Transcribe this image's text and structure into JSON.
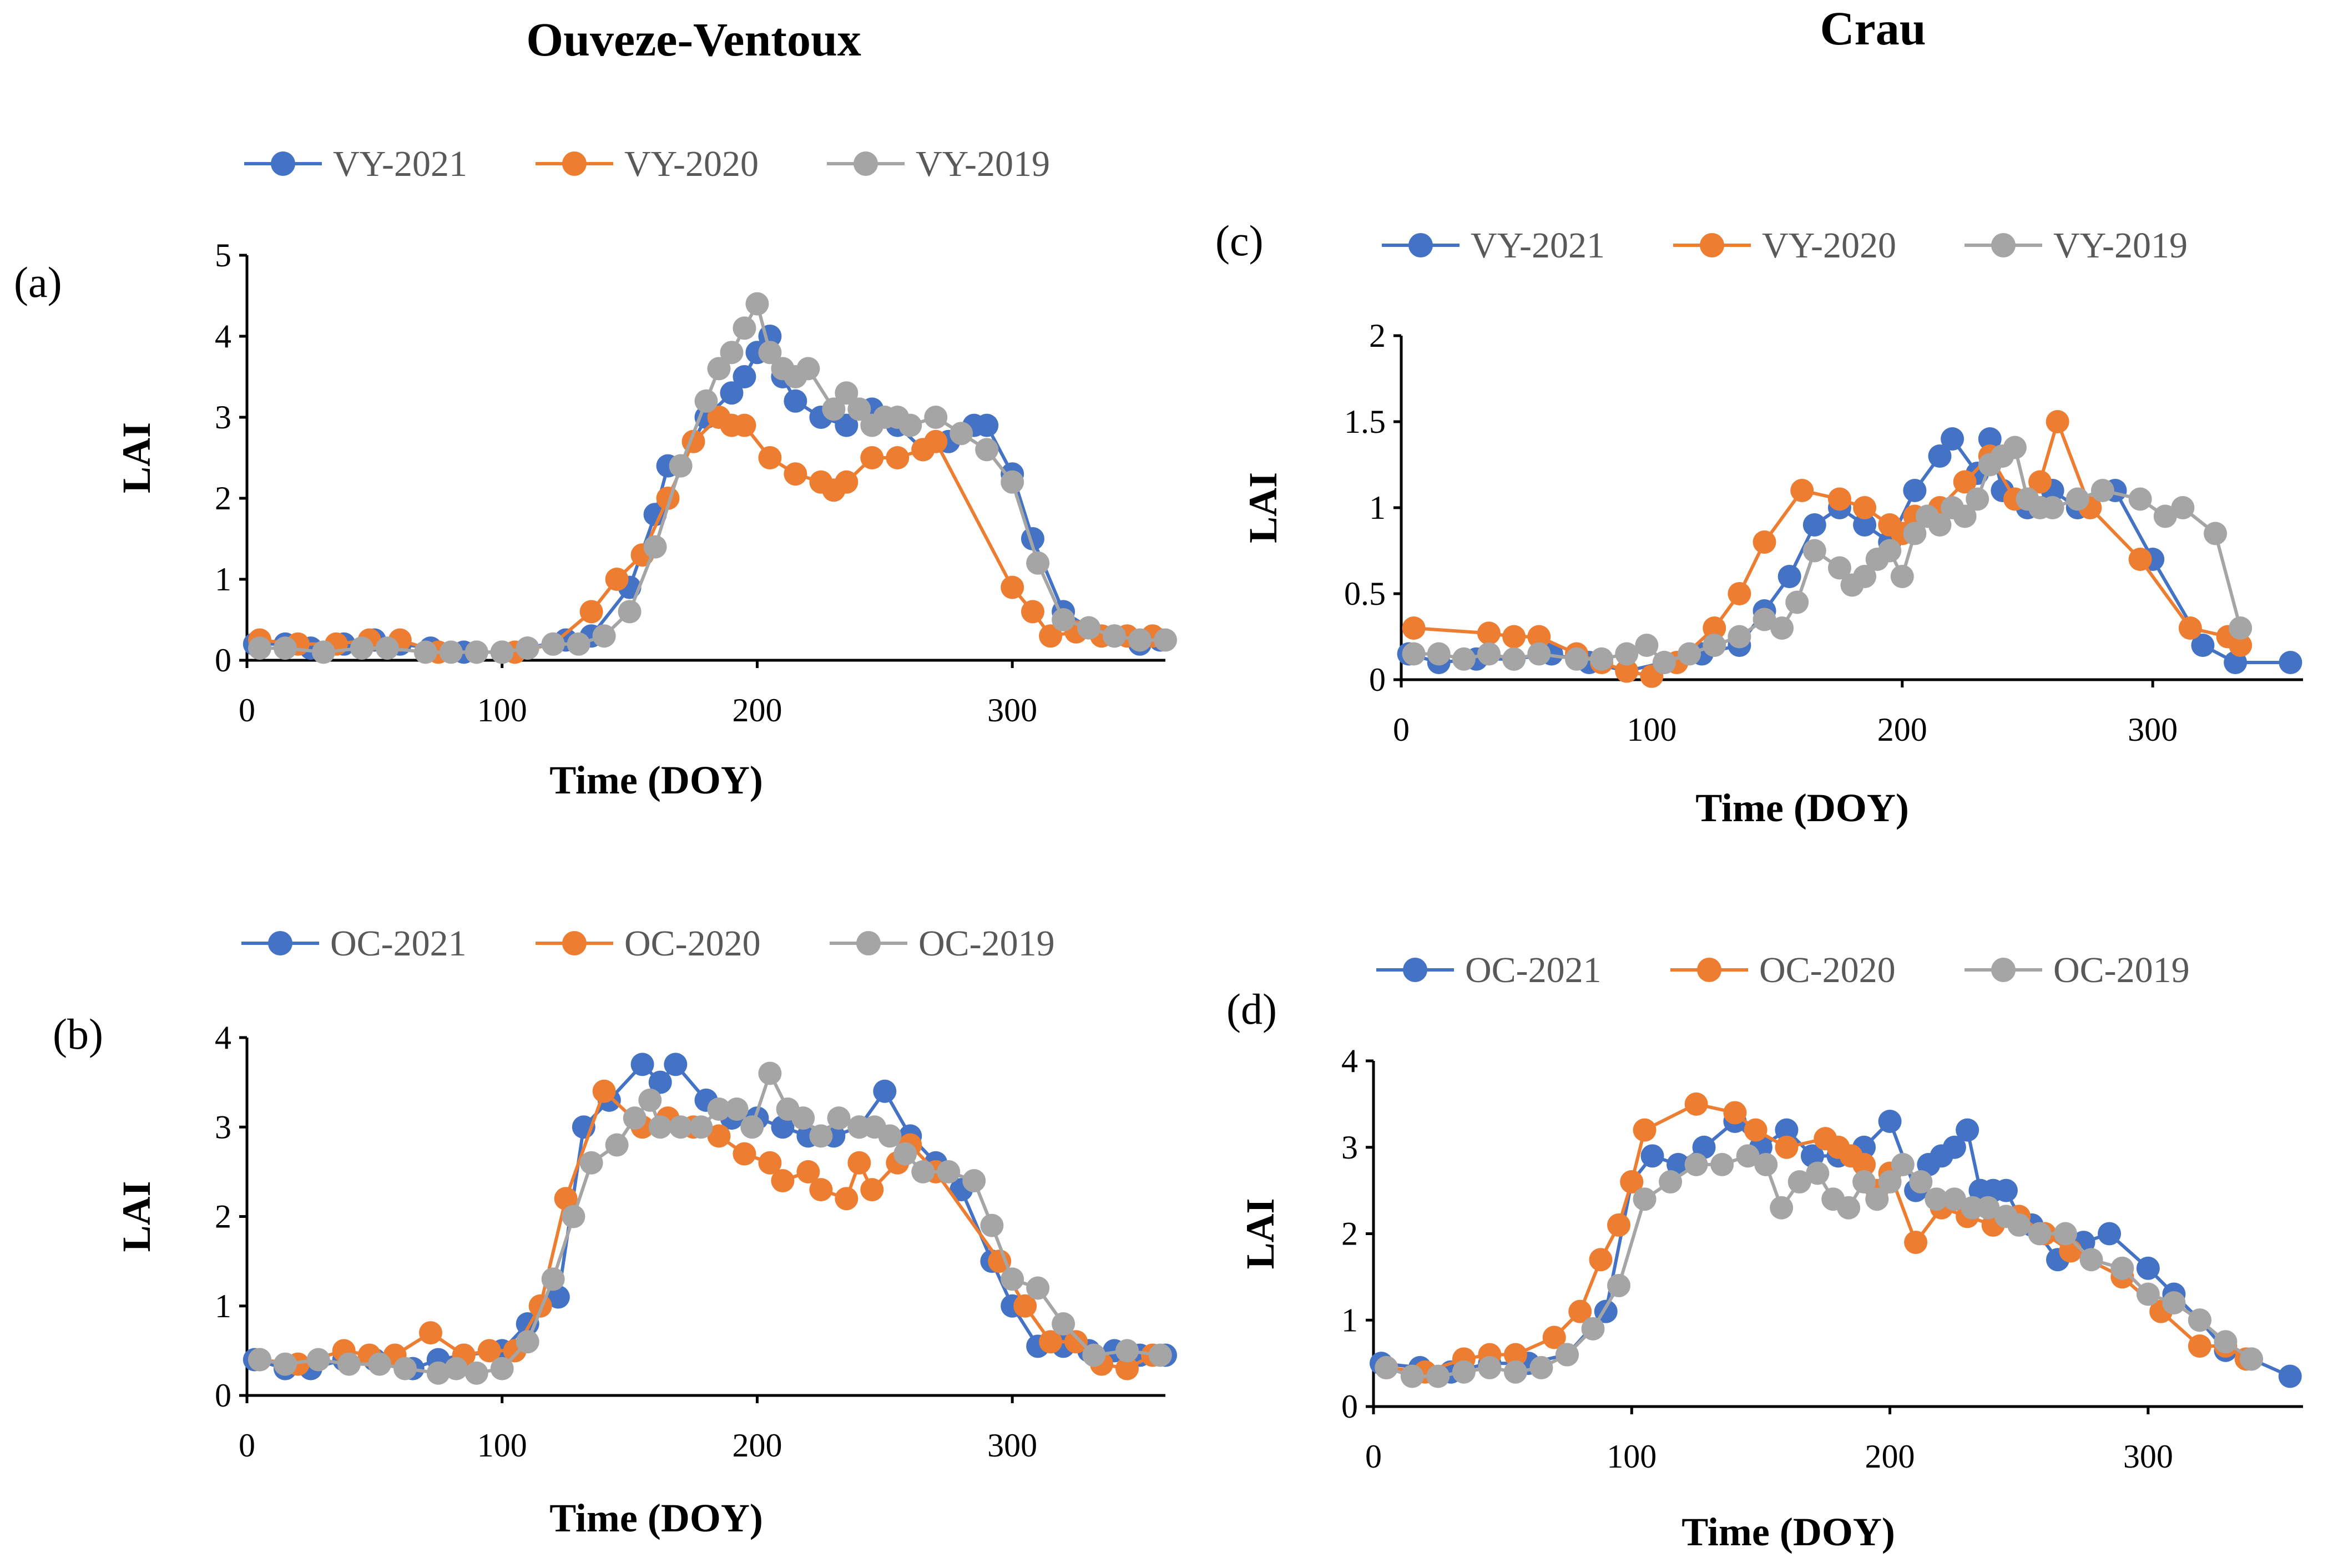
{
  "site_titles": {
    "left": "Ouveze-Ventoux",
    "right": "Crau"
  },
  "chart_data": [
    {
      "panel": "(a)",
      "site": "Ouveze-Ventoux",
      "type": "line",
      "xlabel": "Time (DOY)",
      "ylabel": "LAI",
      "xlim": [
        0,
        360
      ],
      "ylim": [
        0,
        5
      ],
      "xticks": [
        0,
        100,
        200,
        300
      ],
      "yticks": [
        0,
        1,
        2,
        3,
        4,
        5
      ],
      "legend_position": "top",
      "series": [
        {
          "name": "VY-2021",
          "color": "#4472C4",
          "x": [
            3,
            15,
            25,
            38,
            50,
            60,
            72,
            85,
            100,
            110,
            125,
            135,
            150,
            160,
            165,
            170,
            180,
            190,
            195,
            200,
            205,
            210,
            215,
            225,
            235,
            245,
            255,
            265,
            275,
            285,
            290,
            300,
            308,
            320,
            330,
            340,
            350,
            358
          ],
          "y": [
            0.2,
            0.2,
            0.15,
            0.2,
            0.25,
            0.2,
            0.15,
            0.1,
            0.1,
            0.15,
            0.25,
            0.3,
            0.9,
            1.8,
            2.4,
            2.4,
            3.0,
            3.3,
            3.5,
            3.8,
            4.0,
            3.5,
            3.2,
            3.0,
            2.9,
            3.1,
            2.9,
            2.6,
            2.7,
            2.9,
            2.9,
            2.3,
            1.5,
            0.6,
            0.4,
            0.3,
            0.2,
            0.25
          ]
        },
        {
          "name": "VY-2020",
          "color": "#ED7D31",
          "x": [
            5,
            20,
            35,
            48,
            60,
            75,
            90,
            105,
            120,
            135,
            145,
            155,
            165,
            175,
            185,
            190,
            195,
            205,
            215,
            225,
            230,
            235,
            245,
            255,
            265,
            270,
            300,
            308,
            315,
            325,
            335,
            345,
            355
          ],
          "y": [
            0.25,
            0.2,
            0.2,
            0.25,
            0.25,
            0.1,
            0.1,
            0.1,
            0.2,
            0.6,
            1.0,
            1.3,
            2.0,
            2.7,
            3.0,
            2.9,
            2.9,
            2.5,
            2.3,
            2.2,
            2.1,
            2.2,
            2.5,
            2.5,
            2.6,
            2.7,
            0.9,
            0.6,
            0.3,
            0.35,
            0.3,
            0.3,
            0.3
          ]
        },
        {
          "name": "VY-2019",
          "color": "#A5A5A5",
          "x": [
            5,
            15,
            30,
            45,
            55,
            70,
            80,
            90,
            100,
            110,
            120,
            130,
            140,
            150,
            160,
            170,
            180,
            185,
            190,
            195,
            200,
            205,
            210,
            215,
            220,
            230,
            235,
            240,
            245,
            250,
            255,
            260,
            270,
            280,
            290,
            300,
            310,
            320,
            330,
            340,
            350,
            360
          ],
          "y": [
            0.15,
            0.15,
            0.1,
            0.15,
            0.15,
            0.1,
            0.1,
            0.1,
            0.1,
            0.15,
            0.2,
            0.2,
            0.3,
            0.6,
            1.4,
            2.4,
            3.2,
            3.6,
            3.8,
            4.1,
            4.4,
            3.8,
            3.6,
            3.5,
            3.6,
            3.1,
            3.3,
            3.1,
            2.9,
            3.0,
            3.0,
            2.9,
            3.0,
            2.8,
            2.6,
            2.2,
            1.2,
            0.5,
            0.4,
            0.3,
            0.25,
            0.25
          ]
        }
      ]
    },
    {
      "panel": "(b)",
      "site": "Ouveze-Ventoux",
      "type": "line",
      "xlabel": "Time (DOY)",
      "ylabel": "LAI",
      "xlim": [
        0,
        360
      ],
      "ylim": [
        0,
        4
      ],
      "xticks": [
        0,
        100,
        200,
        300
      ],
      "yticks": [
        0,
        1,
        2,
        3,
        4
      ],
      "legend_position": "top",
      "series": [
        {
          "name": "OC-2021",
          "color": "#4472C4",
          "x": [
            3,
            15,
            25,
            38,
            50,
            65,
            75,
            85,
            100,
            110,
            122,
            132,
            142,
            155,
            162,
            168,
            180,
            190,
            200,
            210,
            220,
            230,
            240,
            250,
            260,
            270,
            280,
            292,
            300,
            310,
            320,
            330,
            340,
            350,
            360
          ],
          "y": [
            0.4,
            0.3,
            0.3,
            0.4,
            0.4,
            0.3,
            0.4,
            0.45,
            0.5,
            0.8,
            1.1,
            3.0,
            3.3,
            3.7,
            3.5,
            3.7,
            3.3,
            3.1,
            3.1,
            3.0,
            2.9,
            2.9,
            3.0,
            3.4,
            2.9,
            2.6,
            2.3,
            1.5,
            1.0,
            0.55,
            0.55,
            0.5,
            0.5,
            0.45,
            0.45
          ]
        },
        {
          "name": "OC-2020",
          "color": "#ED7D31",
          "x": [
            5,
            20,
            38,
            48,
            58,
            72,
            85,
            95,
            105,
            115,
            125,
            140,
            155,
            165,
            175,
            185,
            195,
            205,
            210,
            220,
            225,
            235,
            240,
            245,
            255,
            260,
            270,
            295,
            305,
            315,
            325,
            335,
            345,
            355
          ],
          "y": [
            0.4,
            0.35,
            0.5,
            0.45,
            0.45,
            0.7,
            0.45,
            0.5,
            0.5,
            1.0,
            2.2,
            3.4,
            3.0,
            3.1,
            3.0,
            2.9,
            2.7,
            2.6,
            2.4,
            2.5,
            2.3,
            2.2,
            2.6,
            2.3,
            2.6,
            2.8,
            2.5,
            1.5,
            1.0,
            0.6,
            0.6,
            0.35,
            0.3,
            0.45
          ]
        },
        {
          "name": "OC-2019",
          "color": "#A5A5A5",
          "x": [
            5,
            15,
            28,
            40,
            52,
            62,
            75,
            82,
            90,
            100,
            110,
            120,
            128,
            135,
            145,
            152,
            158,
            162,
            170,
            178,
            185,
            192,
            198,
            205,
            212,
            218,
            225,
            232,
            240,
            246,
            252,
            258,
            265,
            275,
            285,
            292,
            300,
            310,
            320,
            332,
            345,
            358
          ],
          "y": [
            0.4,
            0.35,
            0.4,
            0.35,
            0.35,
            0.3,
            0.25,
            0.3,
            0.25,
            0.3,
            0.6,
            1.3,
            2.0,
            2.6,
            2.8,
            3.1,
            3.3,
            3.0,
            3.0,
            3.0,
            3.2,
            3.2,
            3.0,
            3.6,
            3.2,
            3.1,
            2.9,
            3.1,
            3.0,
            3.0,
            2.9,
            2.7,
            2.5,
            2.5,
            2.4,
            1.9,
            1.3,
            1.2,
            0.8,
            0.45,
            0.5,
            0.45
          ]
        }
      ]
    },
    {
      "panel": "(c)",
      "site": "Crau",
      "type": "line",
      "xlabel": "Time (DOY)",
      "ylabel": "LAI",
      "xlim": [
        0,
        360
      ],
      "ylim": [
        0,
        2
      ],
      "xticks": [
        0,
        100,
        200,
        300
      ],
      "yticks": [
        0,
        0.5,
        1,
        1.5,
        2
      ],
      "ytick_labels": [
        "0",
        "0.5",
        "1",
        "1.5",
        "2"
      ],
      "legend_position": "top",
      "series": [
        {
          "name": "VY-2021",
          "color": "#4472C4",
          "x": [
            3,
            15,
            30,
            45,
            60,
            75,
            90,
            105,
            120,
            135,
            145,
            155,
            165,
            175,
            185,
            195,
            205,
            215,
            220,
            230,
            235,
            240,
            250,
            260,
            270,
            285,
            300,
            320,
            333,
            355
          ],
          "y": [
            0.15,
            0.1,
            0.12,
            0.12,
            0.15,
            0.1,
            0.05,
            0.1,
            0.15,
            0.2,
            0.4,
            0.6,
            0.9,
            1.0,
            0.9,
            0.8,
            1.1,
            1.3,
            1.4,
            1.2,
            1.4,
            1.1,
            1.0,
            1.1,
            1.0,
            1.1,
            0.7,
            0.2,
            0.1,
            0.1
          ]
        },
        {
          "name": "VY-2020",
          "color": "#ED7D31",
          "x": [
            5,
            35,
            45,
            55,
            70,
            80,
            90,
            100,
            110,
            125,
            135,
            145,
            160,
            175,
            185,
            195,
            200,
            205,
            215,
            225,
            235,
            245,
            255,
            262,
            275,
            295,
            315,
            330,
            335
          ],
          "y": [
            0.3,
            0.27,
            0.25,
            0.25,
            0.15,
            0.1,
            0.05,
            0.02,
            0.1,
            0.3,
            0.5,
            0.8,
            1.1,
            1.05,
            1.0,
            0.9,
            0.85,
            0.95,
            1.0,
            1.15,
            1.3,
            1.05,
            1.15,
            1.5,
            1.0,
            0.7,
            0.3,
            0.25,
            0.2
          ]
        },
        {
          "name": "VY-2019",
          "color": "#A5A5A5",
          "x": [
            5,
            15,
            25,
            35,
            45,
            55,
            70,
            80,
            90,
            98,
            105,
            115,
            125,
            135,
            145,
            152,
            158,
            165,
            175,
            180,
            185,
            190,
            195,
            200,
            205,
            210,
            215,
            220,
            225,
            230,
            235,
            240,
            245,
            250,
            255,
            260,
            270,
            280,
            295,
            305,
            312,
            325,
            335
          ],
          "y": [
            0.15,
            0.15,
            0.12,
            0.15,
            0.12,
            0.15,
            0.12,
            0.12,
            0.15,
            0.2,
            0.1,
            0.15,
            0.2,
            0.25,
            0.35,
            0.3,
            0.45,
            0.75,
            0.65,
            0.55,
            0.6,
            0.7,
            0.75,
            0.6,
            0.85,
            0.95,
            0.9,
            1.0,
            0.95,
            1.05,
            1.25,
            1.3,
            1.35,
            1.05,
            1.0,
            1.0,
            1.05,
            1.1,
            1.05,
            0.95,
            1.0,
            0.85,
            0.3
          ]
        }
      ]
    },
    {
      "panel": "(d)",
      "site": "Crau",
      "type": "line",
      "xlabel": "Time (DOY)",
      "ylabel": "LAI",
      "xlim": [
        0,
        360
      ],
      "ylim": [
        0,
        4
      ],
      "xticks": [
        0,
        100,
        200,
        300
      ],
      "yticks": [
        0,
        1,
        2,
        3,
        4
      ],
      "legend_position": "top",
      "series": [
        {
          "name": "OC-2021",
          "color": "#4472C4",
          "x": [
            3,
            18,
            30,
            45,
            60,
            75,
            90,
            100,
            108,
            118,
            128,
            140,
            150,
            160,
            170,
            180,
            190,
            200,
            210,
            215,
            220,
            225,
            230,
            235,
            240,
            245,
            250,
            255,
            265,
            275,
            285,
            300,
            310,
            320,
            330,
            340,
            355
          ],
          "y": [
            0.5,
            0.45,
            0.4,
            0.5,
            0.5,
            0.6,
            1.1,
            2.6,
            2.9,
            2.8,
            3.0,
            3.3,
            3.0,
            3.2,
            2.9,
            2.9,
            3.0,
            3.3,
            2.5,
            2.8,
            2.9,
            3.0,
            3.2,
            2.5,
            2.5,
            2.5,
            2.2,
            2.1,
            1.7,
            1.9,
            2.0,
            1.6,
            1.3,
            1.0,
            0.65,
            0.55,
            0.35
          ]
        },
        {
          "name": "OC-2020",
          "color": "#ED7D31",
          "x": [
            5,
            20,
            35,
            45,
            55,
            70,
            80,
            88,
            95,
            100,
            105,
            125,
            140,
            148,
            160,
            175,
            180,
            185,
            190,
            195,
            200,
            210,
            220,
            230,
            240,
            250,
            260,
            270,
            290,
            305,
            320,
            330,
            338
          ],
          "y": [
            0.45,
            0.4,
            0.55,
            0.6,
            0.6,
            0.8,
            1.1,
            1.7,
            2.1,
            2.6,
            3.2,
            3.5,
            3.4,
            3.2,
            3.0,
            3.1,
            3.0,
            2.9,
            2.8,
            2.5,
            2.7,
            1.9,
            2.3,
            2.2,
            2.1,
            2.2,
            2.0,
            1.8,
            1.5,
            1.1,
            0.7,
            0.7,
            0.55
          ]
        },
        {
          "name": "OC-2019",
          "color": "#A5A5A5",
          "x": [
            5,
            15,
            25,
            35,
            45,
            55,
            65,
            75,
            85,
            95,
            105,
            115,
            125,
            135,
            145,
            152,
            158,
            165,
            172,
            178,
            184,
            190,
            195,
            200,
            205,
            212,
            218,
            225,
            232,
            238,
            245,
            250,
            258,
            268,
            278,
            290,
            300,
            310,
            320,
            330,
            340
          ],
          "y": [
            0.45,
            0.35,
            0.35,
            0.4,
            0.45,
            0.4,
            0.45,
            0.6,
            0.9,
            1.4,
            2.4,
            2.6,
            2.8,
            2.8,
            2.9,
            2.8,
            2.3,
            2.6,
            2.7,
            2.4,
            2.3,
            2.6,
            2.4,
            2.6,
            2.8,
            2.6,
            2.4,
            2.4,
            2.3,
            2.3,
            2.2,
            2.1,
            2.0,
            2.0,
            1.7,
            1.6,
            1.3,
            1.2,
            1.0,
            0.75,
            0.55
          ]
        }
      ]
    }
  ]
}
